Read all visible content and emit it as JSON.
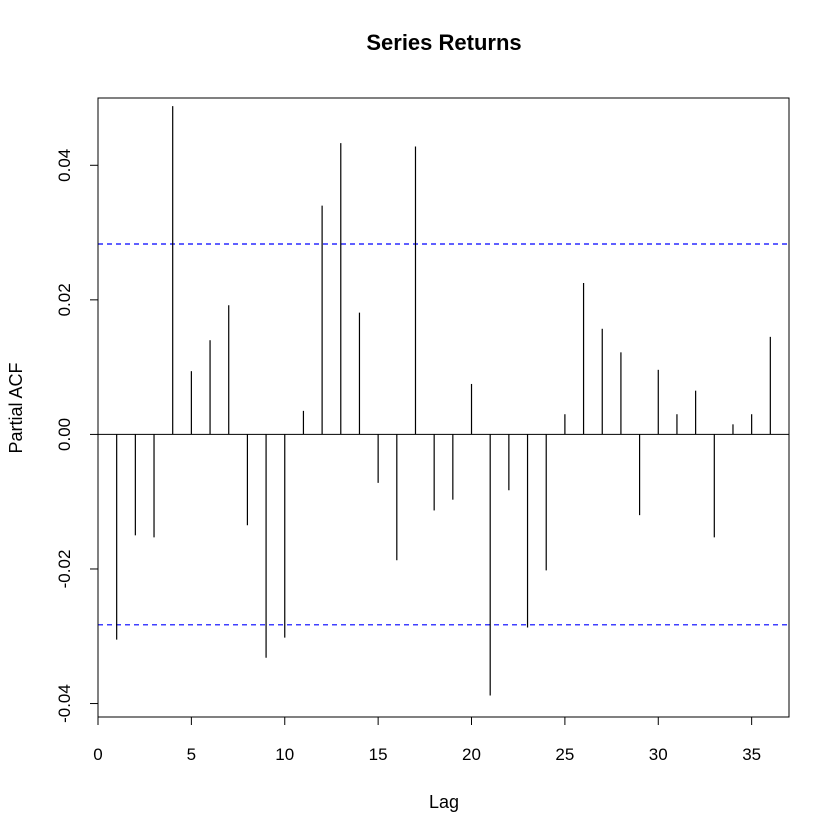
{
  "chart_data": {
    "type": "bar",
    "title": "Series  Returns",
    "xlabel": "Lag",
    "ylabel": "Partial ACF",
    "xlim": [
      0,
      37
    ],
    "ylim": [
      -0.042,
      0.05
    ],
    "x_ticks": [
      0,
      5,
      10,
      15,
      20,
      25,
      30,
      35
    ],
    "x_tick_labels": [
      "0",
      "5",
      "10",
      "15",
      "20",
      "25",
      "30",
      "35"
    ],
    "y_ticks": [
      -0.04,
      -0.02,
      0.0,
      0.02,
      0.04
    ],
    "y_tick_labels": [
      "-0.04",
      "-0.02",
      "0.00",
      "0.02",
      "0.04"
    ],
    "confidence_bounds": [
      0.0283,
      -0.0283
    ],
    "colors": {
      "bars": "#000000",
      "bounds": "#0000ff",
      "zero_line": "#000000"
    },
    "grid": false,
    "legend": "none",
    "lags": [
      1,
      2,
      3,
      4,
      5,
      6,
      7,
      8,
      9,
      10,
      11,
      12,
      13,
      14,
      15,
      16,
      17,
      18,
      19,
      20,
      21,
      22,
      23,
      24,
      25,
      26,
      27,
      28,
      29,
      30,
      31,
      32,
      33,
      34,
      35,
      36
    ],
    "values": [
      -0.0305,
      -0.015,
      -0.0153,
      0.0488,
      0.0094,
      0.014,
      0.0192,
      -0.0135,
      -0.0332,
      -0.0302,
      0.0035,
      0.034,
      0.0433,
      0.0181,
      -0.0072,
      -0.0187,
      0.0428,
      -0.0113,
      -0.0097,
      0.0075,
      -0.0388,
      -0.0083,
      -0.0287,
      -0.0202,
      0.003,
      0.0225,
      0.0157,
      0.0122,
      -0.012,
      0.0096,
      0.003,
      0.0065,
      -0.0153,
      0.0015,
      0.003,
      0.0145
    ]
  }
}
